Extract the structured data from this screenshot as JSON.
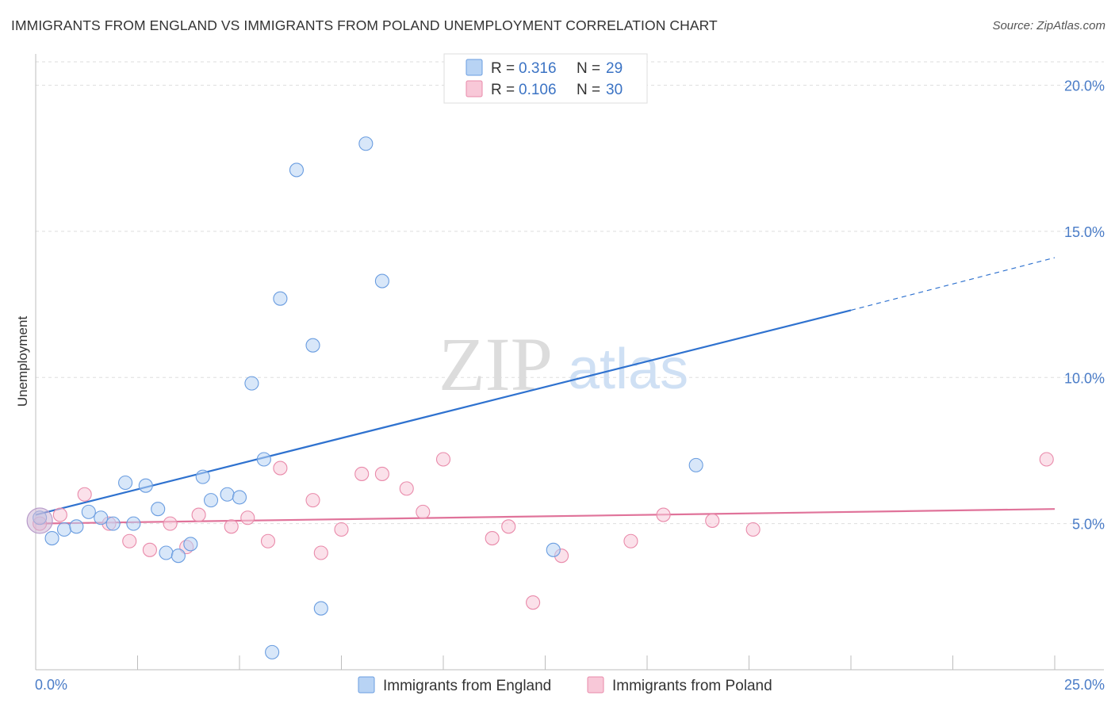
{
  "header": {
    "title": "IMMIGRANTS FROM ENGLAND VS IMMIGRANTS FROM POLAND UNEMPLOYMENT CORRELATION CHART",
    "source": "Source: ZipAtlas.com"
  },
  "watermark": {
    "zip": "ZIP",
    "atlas": "atlas"
  },
  "chart_data": {
    "type": "scatter",
    "title": "IMMIGRANTS FROM ENGLAND VS IMMIGRANTS FROM POLAND UNEMPLOYMENT CORRELATION CHART",
    "xlabel": "",
    "ylabel": "Unemployment",
    "xlim": [
      0,
      25
    ],
    "ylim": [
      0,
      20.8
    ],
    "x_tick_labels": [
      {
        "value": 0,
        "label": "0.0%"
      },
      {
        "value": 25,
        "label": "25.0%"
      }
    ],
    "y_tick_labels": [
      {
        "value": 5,
        "label": "5.0%"
      },
      {
        "value": 10,
        "label": "10.0%"
      },
      {
        "value": 15,
        "label": "15.0%"
      },
      {
        "value": 20,
        "label": "20.0%"
      }
    ],
    "y_gridlines": [
      5,
      10,
      15,
      20
    ],
    "x_minor_ticks": [
      2.5,
      5,
      7.5,
      10,
      12.5,
      15,
      17.5,
      20,
      22.5,
      25
    ],
    "grid": "horizontal-dashed",
    "legend_placement": "top-center",
    "series": [
      {
        "name": "Immigrants from England",
        "color": "#6a9de0",
        "fill": "#b8d3f4",
        "R": "0.316",
        "N": "29",
        "trend": {
          "x0": 0,
          "y0": 5.3,
          "x1": 20,
          "y1": 12.3,
          "dashed_to_x": 25,
          "dashed_to_y": 14.1
        },
        "points": [
          [
            0.1,
            5.2
          ],
          [
            0.4,
            4.5
          ],
          [
            0.7,
            4.8
          ],
          [
            1.0,
            4.9
          ],
          [
            1.3,
            5.4
          ],
          [
            1.6,
            5.2
          ],
          [
            1.9,
            5.0
          ],
          [
            2.2,
            6.4
          ],
          [
            2.4,
            5.0
          ],
          [
            2.7,
            6.3
          ],
          [
            3.0,
            5.5
          ],
          [
            3.2,
            4.0
          ],
          [
            3.5,
            3.9
          ],
          [
            3.8,
            4.3
          ],
          [
            4.1,
            6.6
          ],
          [
            4.3,
            5.8
          ],
          [
            4.7,
            6.0
          ],
          [
            5.0,
            5.9
          ],
          [
            5.3,
            9.8
          ],
          [
            5.6,
            7.2
          ],
          [
            5.8,
            0.6
          ],
          [
            6.0,
            12.7
          ],
          [
            6.4,
            17.1
          ],
          [
            6.8,
            11.1
          ],
          [
            7.0,
            2.1
          ],
          [
            8.1,
            18.0
          ],
          [
            8.5,
            13.3
          ],
          [
            12.7,
            4.1
          ],
          [
            16.2,
            7.0
          ]
        ]
      },
      {
        "name": "Immigrants from Poland",
        "color": "#e98aaa",
        "fill": "#f8c8d8",
        "R": "0.106",
        "N": "30",
        "trend": {
          "x0": 0,
          "y0": 5.0,
          "x1": 25,
          "y1": 5.5
        },
        "points": [
          [
            0.1,
            5.0
          ],
          [
            0.6,
            5.3
          ],
          [
            1.2,
            6.0
          ],
          [
            1.8,
            5.0
          ],
          [
            2.3,
            4.4
          ],
          [
            2.8,
            4.1
          ],
          [
            3.3,
            5.0
          ],
          [
            3.7,
            4.2
          ],
          [
            4.0,
            5.3
          ],
          [
            4.8,
            4.9
          ],
          [
            5.2,
            5.2
          ],
          [
            5.7,
            4.4
          ],
          [
            6.0,
            6.9
          ],
          [
            6.8,
            5.8
          ],
          [
            7.0,
            4.0
          ],
          [
            7.5,
            4.8
          ],
          [
            8.0,
            6.7
          ],
          [
            8.5,
            6.7
          ],
          [
            9.1,
            6.2
          ],
          [
            9.5,
            5.4
          ],
          [
            10.0,
            7.2
          ],
          [
            11.2,
            4.5
          ],
          [
            11.6,
            4.9
          ],
          [
            12.2,
            2.3
          ],
          [
            12.9,
            3.9
          ],
          [
            14.6,
            4.4
          ],
          [
            15.4,
            5.3
          ],
          [
            16.6,
            5.1
          ],
          [
            17.6,
            4.8
          ],
          [
            24.8,
            7.2
          ]
        ]
      }
    ]
  },
  "legend": {
    "r_label": "R =",
    "n_label": "N ="
  }
}
